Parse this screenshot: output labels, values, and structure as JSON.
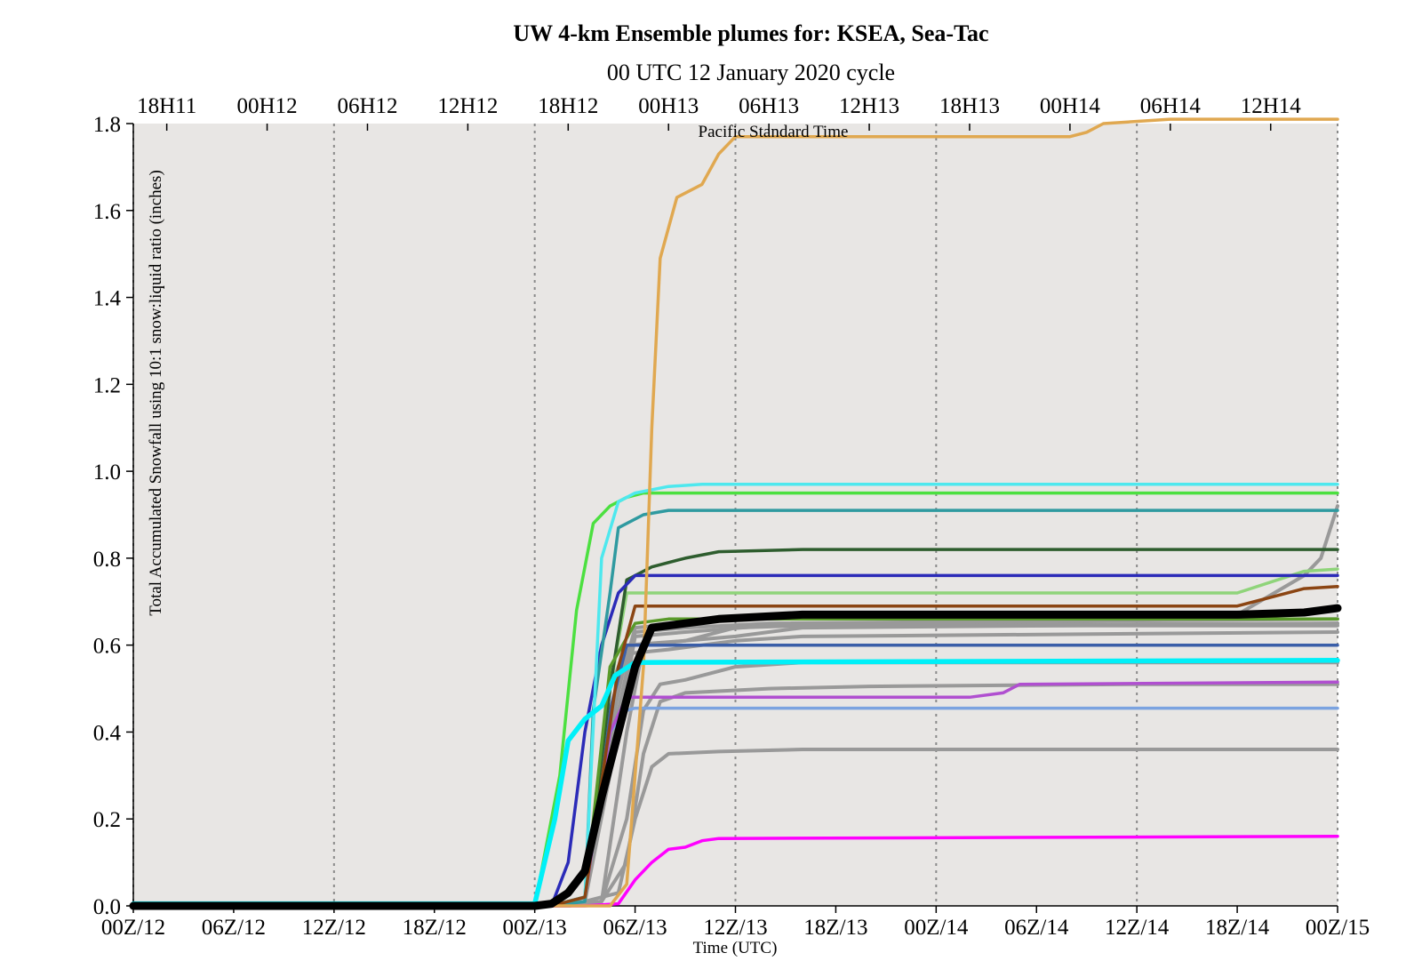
{
  "chart_data": {
    "type": "line",
    "title": "UW 4-km Ensemble plumes for: KSEA, Sea-Tac",
    "subtitle": "00 UTC 12 January 2020 cycle",
    "xlabel": "Time (UTC)",
    "ylabel": "Total Accumulated Snowfall using 10:1 snow:liquid ratio (inches)",
    "top_axis_label": "Pacific Standard Time",
    "x_unit": "hours since 00Z/12",
    "xlim": [
      0,
      72
    ],
    "ylim": [
      0,
      1.8
    ],
    "grid": "vertical dotted",
    "x_ticks": [
      0,
      6,
      12,
      18,
      24,
      30,
      36,
      42,
      48,
      54,
      60,
      66,
      72
    ],
    "x_tick_labels": [
      "00Z/12",
      "06Z/12",
      "12Z/12",
      "18Z/12",
      "00Z/13",
      "06Z/13",
      "12Z/13",
      "18Z/13",
      "00Z/14",
      "06Z/14",
      "12Z/14",
      "18Z/14",
      "00Z/15"
    ],
    "top_ticks": [
      2,
      8,
      14,
      20,
      26,
      32,
      38,
      44,
      50,
      56,
      62,
      68
    ],
    "top_tick_labels": [
      "18H11",
      "00H12",
      "06H12",
      "12H12",
      "18H12",
      "00H13",
      "06H13",
      "12H13",
      "18H13",
      "00H14",
      "06H14",
      "12H14"
    ],
    "y_ticks": [
      0,
      0.2,
      0.4,
      0.6,
      0.8,
      1.0,
      1.2,
      1.4,
      1.6,
      1.8
    ],
    "y_tick_labels": [
      "0.0",
      "0.2",
      "0.4",
      "0.6",
      "0.8",
      "1.0",
      "1.2",
      "1.4",
      "1.6",
      "1.8"
    ],
    "series": [
      {
        "color": "#999999",
        "width": 4,
        "points": [
          [
            0,
            0
          ],
          [
            26,
            0
          ],
          [
            27,
            0.01
          ],
          [
            29,
            0.03
          ],
          [
            30,
            0.2
          ],
          [
            31,
            0.32
          ],
          [
            32,
            0.35
          ],
          [
            35,
            0.355
          ],
          [
            40,
            0.36
          ],
          [
            72,
            0.36
          ]
        ]
      },
      {
        "color": "#999999",
        "width": 4,
        "points": [
          [
            0,
            0
          ],
          [
            26,
            0
          ],
          [
            28,
            0.01
          ],
          [
            29.5,
            0.1
          ],
          [
            30.5,
            0.35
          ],
          [
            31.5,
            0.47
          ],
          [
            33,
            0.49
          ],
          [
            38,
            0.5
          ],
          [
            44,
            0.505
          ],
          [
            60,
            0.51
          ],
          [
            72,
            0.51
          ]
        ]
      },
      {
        "color": "#999999",
        "width": 4,
        "points": [
          [
            0,
            0
          ],
          [
            26,
            0
          ],
          [
            28,
            0.01
          ],
          [
            29.5,
            0.2
          ],
          [
            30.5,
            0.45
          ],
          [
            31.5,
            0.51
          ],
          [
            33,
            0.52
          ],
          [
            36,
            0.55
          ],
          [
            40,
            0.56
          ],
          [
            72,
            0.56
          ]
        ]
      },
      {
        "color": "#999999",
        "width": 4,
        "points": [
          [
            0,
            0
          ],
          [
            25,
            0
          ],
          [
            27,
            0.02
          ],
          [
            28.5,
            0.4
          ],
          [
            29.5,
            0.58
          ],
          [
            32,
            0.59
          ],
          [
            36,
            0.61
          ],
          [
            40,
            0.62
          ],
          [
            72,
            0.63
          ]
        ]
      },
      {
        "color": "#999999",
        "width": 4,
        "points": [
          [
            0,
            0
          ],
          [
            25,
            0
          ],
          [
            27,
            0.02
          ],
          [
            28.5,
            0.5
          ],
          [
            29.5,
            0.6
          ],
          [
            33,
            0.61
          ],
          [
            36,
            0.64
          ],
          [
            40,
            0.645
          ],
          [
            72,
            0.65
          ]
        ]
      },
      {
        "color": "#999999",
        "width": 4,
        "points": [
          [
            0,
            0
          ],
          [
            25,
            0
          ],
          [
            27,
            0.01
          ],
          [
            29,
            0.45
          ],
          [
            30,
            0.63
          ],
          [
            33,
            0.64
          ],
          [
            38,
            0.65
          ],
          [
            72,
            0.66
          ]
        ]
      },
      {
        "color": "#999999",
        "width": 4,
        "points": [
          [
            0,
            0
          ],
          [
            26,
            0
          ],
          [
            28,
            0.01
          ],
          [
            29.5,
            0.4
          ],
          [
            30.5,
            0.6
          ],
          [
            33,
            0.61
          ],
          [
            36,
            0.62
          ],
          [
            40,
            0.64
          ],
          [
            72,
            0.65
          ]
        ]
      },
      {
        "color": "#999999",
        "width": 4,
        "points": [
          [
            0,
            0
          ],
          [
            25,
            0
          ],
          [
            27,
            0.01
          ],
          [
            29,
            0.5
          ],
          [
            30,
            0.64
          ],
          [
            36,
            0.66
          ],
          [
            42,
            0.67
          ],
          [
            66,
            0.67
          ],
          [
            70,
            0.76
          ],
          [
            71,
            0.8
          ],
          [
            72,
            0.92
          ]
        ]
      },
      {
        "color": "#999999",
        "width": 4,
        "points": [
          [
            0,
            0
          ],
          [
            25,
            0
          ],
          [
            27,
            0.01
          ],
          [
            29,
            0.4
          ],
          [
            30,
            0.62
          ],
          [
            33,
            0.63
          ],
          [
            38,
            0.645
          ],
          [
            72,
            0.645
          ]
        ]
      },
      {
        "color": "#ff00ff",
        "width": 3.5,
        "points": [
          [
            0,
            0
          ],
          [
            27,
            0
          ],
          [
            29,
            0.005
          ],
          [
            30,
            0.06
          ],
          [
            31,
            0.1
          ],
          [
            32,
            0.13
          ],
          [
            33,
            0.135
          ],
          [
            34,
            0.15
          ],
          [
            35,
            0.155
          ],
          [
            72,
            0.16
          ]
        ]
      },
      {
        "color": "#7ba3e0",
        "width": 3.5,
        "points": [
          [
            0,
            0
          ],
          [
            25,
            0
          ],
          [
            27,
            0.02
          ],
          [
            28.5,
            0.4
          ],
          [
            29.5,
            0.45
          ],
          [
            30,
            0.455
          ],
          [
            72,
            0.455
          ]
        ]
      },
      {
        "color": "#b04fd0",
        "width": 3.5,
        "points": [
          [
            0,
            0
          ],
          [
            25,
            0
          ],
          [
            27,
            0.02
          ],
          [
            28.5,
            0.4
          ],
          [
            29.5,
            0.48
          ],
          [
            50,
            0.48
          ],
          [
            52,
            0.49
          ],
          [
            53,
            0.51
          ],
          [
            72,
            0.515
          ]
        ]
      },
      {
        "color": "#3a5ea8",
        "width": 3.5,
        "points": [
          [
            0,
            0
          ],
          [
            25,
            0
          ],
          [
            27,
            0.02
          ],
          [
            28.5,
            0.45
          ],
          [
            29.5,
            0.6
          ],
          [
            72,
            0.6
          ]
        ]
      },
      {
        "color": "#8fd47a",
        "width": 3.5,
        "points": [
          [
            0,
            0
          ],
          [
            25,
            0
          ],
          [
            27,
            0.02
          ],
          [
            28.5,
            0.5
          ],
          [
            29.5,
            0.72
          ],
          [
            66,
            0.72
          ],
          [
            70,
            0.77
          ],
          [
            72,
            0.775
          ]
        ]
      },
      {
        "color": "#2e5d2e",
        "width": 3.5,
        "points": [
          [
            0,
            0
          ],
          [
            25,
            0
          ],
          [
            27,
            0.02
          ],
          [
            28.5,
            0.5
          ],
          [
            29.5,
            0.75
          ],
          [
            31,
            0.78
          ],
          [
            33,
            0.8
          ],
          [
            35,
            0.815
          ],
          [
            40,
            0.82
          ],
          [
            72,
            0.82
          ]
        ]
      },
      {
        "color": "#2b2bb8",
        "width": 3.5,
        "points": [
          [
            0,
            0
          ],
          [
            25,
            0
          ],
          [
            26,
            0.1
          ],
          [
            27,
            0.4
          ],
          [
            28,
            0.6
          ],
          [
            29,
            0.72
          ],
          [
            30,
            0.76
          ],
          [
            72,
            0.76
          ]
        ]
      },
      {
        "color": "#2f9aa0",
        "width": 3.5,
        "points": [
          [
            0,
            0
          ],
          [
            25,
            0
          ],
          [
            27,
            0.01
          ],
          [
            27.5,
            0.45
          ],
          [
            28.5,
            0.72
          ],
          [
            29,
            0.87
          ],
          [
            30.5,
            0.9
          ],
          [
            32,
            0.91
          ],
          [
            72,
            0.91
          ]
        ]
      },
      {
        "color": "#5a9a2a",
        "width": 3.5,
        "points": [
          [
            0,
            0
          ],
          [
            25,
            0
          ],
          [
            27,
            0.02
          ],
          [
            28.5,
            0.55
          ],
          [
            30,
            0.65
          ],
          [
            32,
            0.66
          ],
          [
            72,
            0.66
          ]
        ]
      },
      {
        "color": "#4ce040",
        "width": 3.5,
        "points": [
          [
            0,
            0
          ],
          [
            24,
            0
          ],
          [
            25.5,
            0.3
          ],
          [
            26.5,
            0.68
          ],
          [
            27.5,
            0.88
          ],
          [
            28.5,
            0.92
          ],
          [
            29.5,
            0.94
          ],
          [
            30.5,
            0.95
          ],
          [
            72,
            0.95
          ]
        ]
      },
      {
        "color": "#4ee8ee",
        "width": 3.5,
        "points": [
          [
            0,
            0
          ],
          [
            25,
            0
          ],
          [
            27,
            0.02
          ],
          [
            28,
            0.8
          ],
          [
            29,
            0.93
          ],
          [
            30,
            0.95
          ],
          [
            32,
            0.965
          ],
          [
            34,
            0.97
          ],
          [
            72,
            0.97
          ]
        ]
      },
      {
        "color": "#8b4513",
        "width": 3.5,
        "points": [
          [
            0,
            0
          ],
          [
            25,
            0
          ],
          [
            27,
            0.02
          ],
          [
            29,
            0.55
          ],
          [
            30,
            0.69
          ],
          [
            66,
            0.69
          ],
          [
            68,
            0.71
          ],
          [
            70,
            0.73
          ],
          [
            72,
            0.735
          ]
        ]
      },
      {
        "color": "#e0a850",
        "width": 3.5,
        "points": [
          [
            0,
            0
          ],
          [
            27,
            0
          ],
          [
            28.5,
            0
          ],
          [
            29.5,
            0.05
          ],
          [
            30.5,
            0.55
          ],
          [
            31,
            1.1
          ],
          [
            31.5,
            1.49
          ],
          [
            32.5,
            1.63
          ],
          [
            34,
            1.66
          ],
          [
            35,
            1.73
          ],
          [
            36,
            1.77
          ],
          [
            44,
            1.77
          ],
          [
            56,
            1.77
          ],
          [
            57,
            1.78
          ],
          [
            58,
            1.8
          ],
          [
            62,
            1.81
          ],
          [
            72,
            1.81
          ]
        ]
      },
      {
        "color": "#00f0f8",
        "width": 5.5,
        "points": [
          [
            0,
            0.005
          ],
          [
            24,
            0.005
          ],
          [
            25.2,
            0.2
          ],
          [
            26,
            0.38
          ],
          [
            27,
            0.43
          ],
          [
            28,
            0.46
          ],
          [
            28.8,
            0.53
          ],
          [
            30,
            0.56
          ],
          [
            72,
            0.565
          ]
        ]
      },
      {
        "color": "#000000",
        "width": 9,
        "points": [
          [
            0,
            0
          ],
          [
            24,
            0
          ],
          [
            25,
            0.005
          ],
          [
            26,
            0.03
          ],
          [
            27,
            0.08
          ],
          [
            28,
            0.25
          ],
          [
            29,
            0.4
          ],
          [
            30,
            0.55
          ],
          [
            31,
            0.64
          ],
          [
            33,
            0.65
          ],
          [
            35,
            0.66
          ],
          [
            40,
            0.67
          ],
          [
            60,
            0.67
          ],
          [
            66,
            0.67
          ],
          [
            70,
            0.675
          ],
          [
            72,
            0.685
          ]
        ]
      }
    ]
  }
}
